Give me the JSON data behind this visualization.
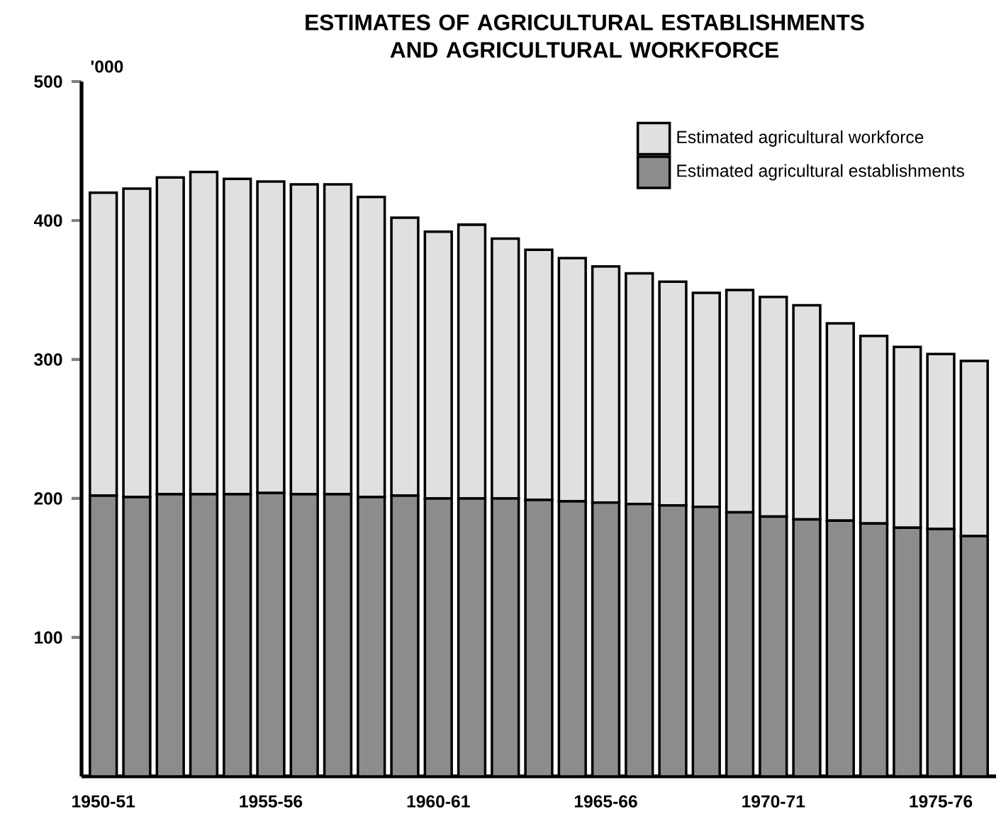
{
  "chart_data": {
    "type": "bar",
    "title": "ESTIMATES OF AGRICULTURAL ESTABLISHMENTS AND AGRICULTURAL WORKFORCE",
    "ylabel": "'000",
    "categories": [
      "1950-51",
      null,
      null,
      null,
      null,
      "1955-56",
      null,
      null,
      null,
      null,
      "1960-61",
      null,
      null,
      null,
      null,
      "1965-66",
      null,
      null,
      null,
      null,
      "1970-71",
      null,
      null,
      null,
      null,
      "1975-76",
      null
    ],
    "stacked": true,
    "series": [
      {
        "name": "Estimated agricultural establishments",
        "color": "#8c8c8c",
        "values": [
          202,
          201,
          203,
          203,
          203,
          204,
          203,
          203,
          201,
          202,
          200,
          200,
          200,
          199,
          198,
          197,
          196,
          195,
          194,
          190,
          187,
          185,
          184,
          182,
          179,
          178,
          173
        ]
      },
      {
        "name": "Estimated agricultural workforce",
        "color": "#e0e0e0",
        "values": [
          218,
          222,
          228,
          232,
          227,
          224,
          223,
          223,
          216,
          200,
          192,
          197,
          187,
          180,
          175,
          170,
          166,
          161,
          154,
          160,
          158,
          154,
          142,
          135,
          130,
          126,
          126
        ]
      }
    ],
    "ylim": [
      0,
      500
    ],
    "yticks": [
      100,
      200,
      300,
      400,
      500
    ],
    "grid": false,
    "legend": "top right"
  }
}
